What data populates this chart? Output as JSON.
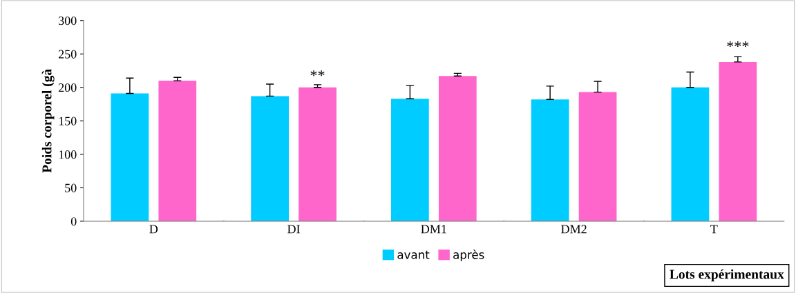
{
  "chart_data": {
    "type": "bar",
    "categories": [
      "D",
      "DI",
      "DM1",
      "DM2",
      "T"
    ],
    "series": [
      {
        "name": "avant",
        "color": "#00ccff",
        "values": [
          191,
          187,
          183,
          182,
          200
        ],
        "errors": [
          [
            191,
            214
          ],
          [
            187,
            205
          ],
          [
            183,
            203
          ],
          [
            182,
            202
          ],
          [
            200,
            223
          ]
        ]
      },
      {
        "name": "après",
        "color": "#ff66cc",
        "values": [
          210,
          200,
          217,
          193,
          238
        ],
        "errors": [
          [
            210,
            215
          ],
          [
            200,
            204
          ],
          [
            217,
            221
          ],
          [
            193,
            209
          ],
          [
            238,
            246
          ]
        ]
      }
    ],
    "ylabel": "Poids corporel (gà",
    "xlabel": "Lots expérimentaux",
    "ylim": [
      0,
      300
    ],
    "yticks": [
      0,
      50,
      100,
      150,
      200,
      250,
      300
    ],
    "grid": false,
    "legend": "bottom",
    "annotations": [
      "**",
      "***"
    ]
  }
}
